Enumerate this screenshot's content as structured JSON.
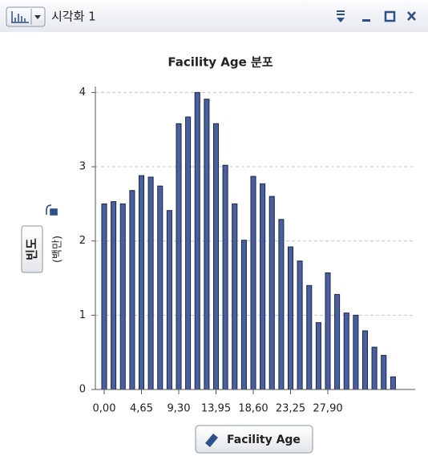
{
  "window": {
    "title": "시각화 1"
  },
  "chart_data": {
    "type": "histogram",
    "title": "Facility Age 분포",
    "x_label": "Facility Age",
    "y_label": "빈도",
    "y_unit": "(백만)",
    "bins": [
      -0.58,
      0.58,
      1.74,
      2.91,
      4.07,
      5.23,
      6.39,
      7.56,
      8.72,
      9.88,
      11.04,
      12.21,
      13.37,
      14.53,
      15.69,
      16.86,
      18.02,
      19.18,
      20.34,
      21.51,
      22.67,
      23.83,
      24.99,
      26.16,
      27.32,
      28.48,
      29.64,
      30.81,
      31.97,
      33.13,
      34.29,
      35.46,
      36.62
    ],
    "values": [
      2.5,
      2.53,
      2.5,
      2.68,
      2.88,
      2.86,
      2.74,
      2.41,
      3.58,
      3.67,
      4.0,
      3.91,
      3.58,
      3.02,
      2.5,
      2.01,
      2.87,
      2.77,
      2.6,
      2.29,
      1.92,
      1.73,
      1.4,
      0.9,
      1.57,
      1.28,
      1.03,
      1.0,
      0.79,
      0.57,
      0.46,
      0.17
    ],
    "color": "#4a5f9e",
    "xlim": [
      -1.1,
      38.8
    ],
    "xticks": [
      {
        "value": 0,
        "label": "0,00"
      },
      {
        "value": 4.65,
        "label": "4,65"
      },
      {
        "value": 9.3,
        "label": "9,30"
      },
      {
        "value": 13.95,
        "label": "13,95"
      },
      {
        "value": 18.6,
        "label": "18,60"
      },
      {
        "value": 23.25,
        "label": "23,25"
      },
      {
        "value": 27.9,
        "label": "27,90"
      }
    ],
    "ylim": [
      0,
      4.08
    ],
    "yticks": [
      0,
      1,
      2,
      3,
      4
    ],
    "grid": true
  }
}
